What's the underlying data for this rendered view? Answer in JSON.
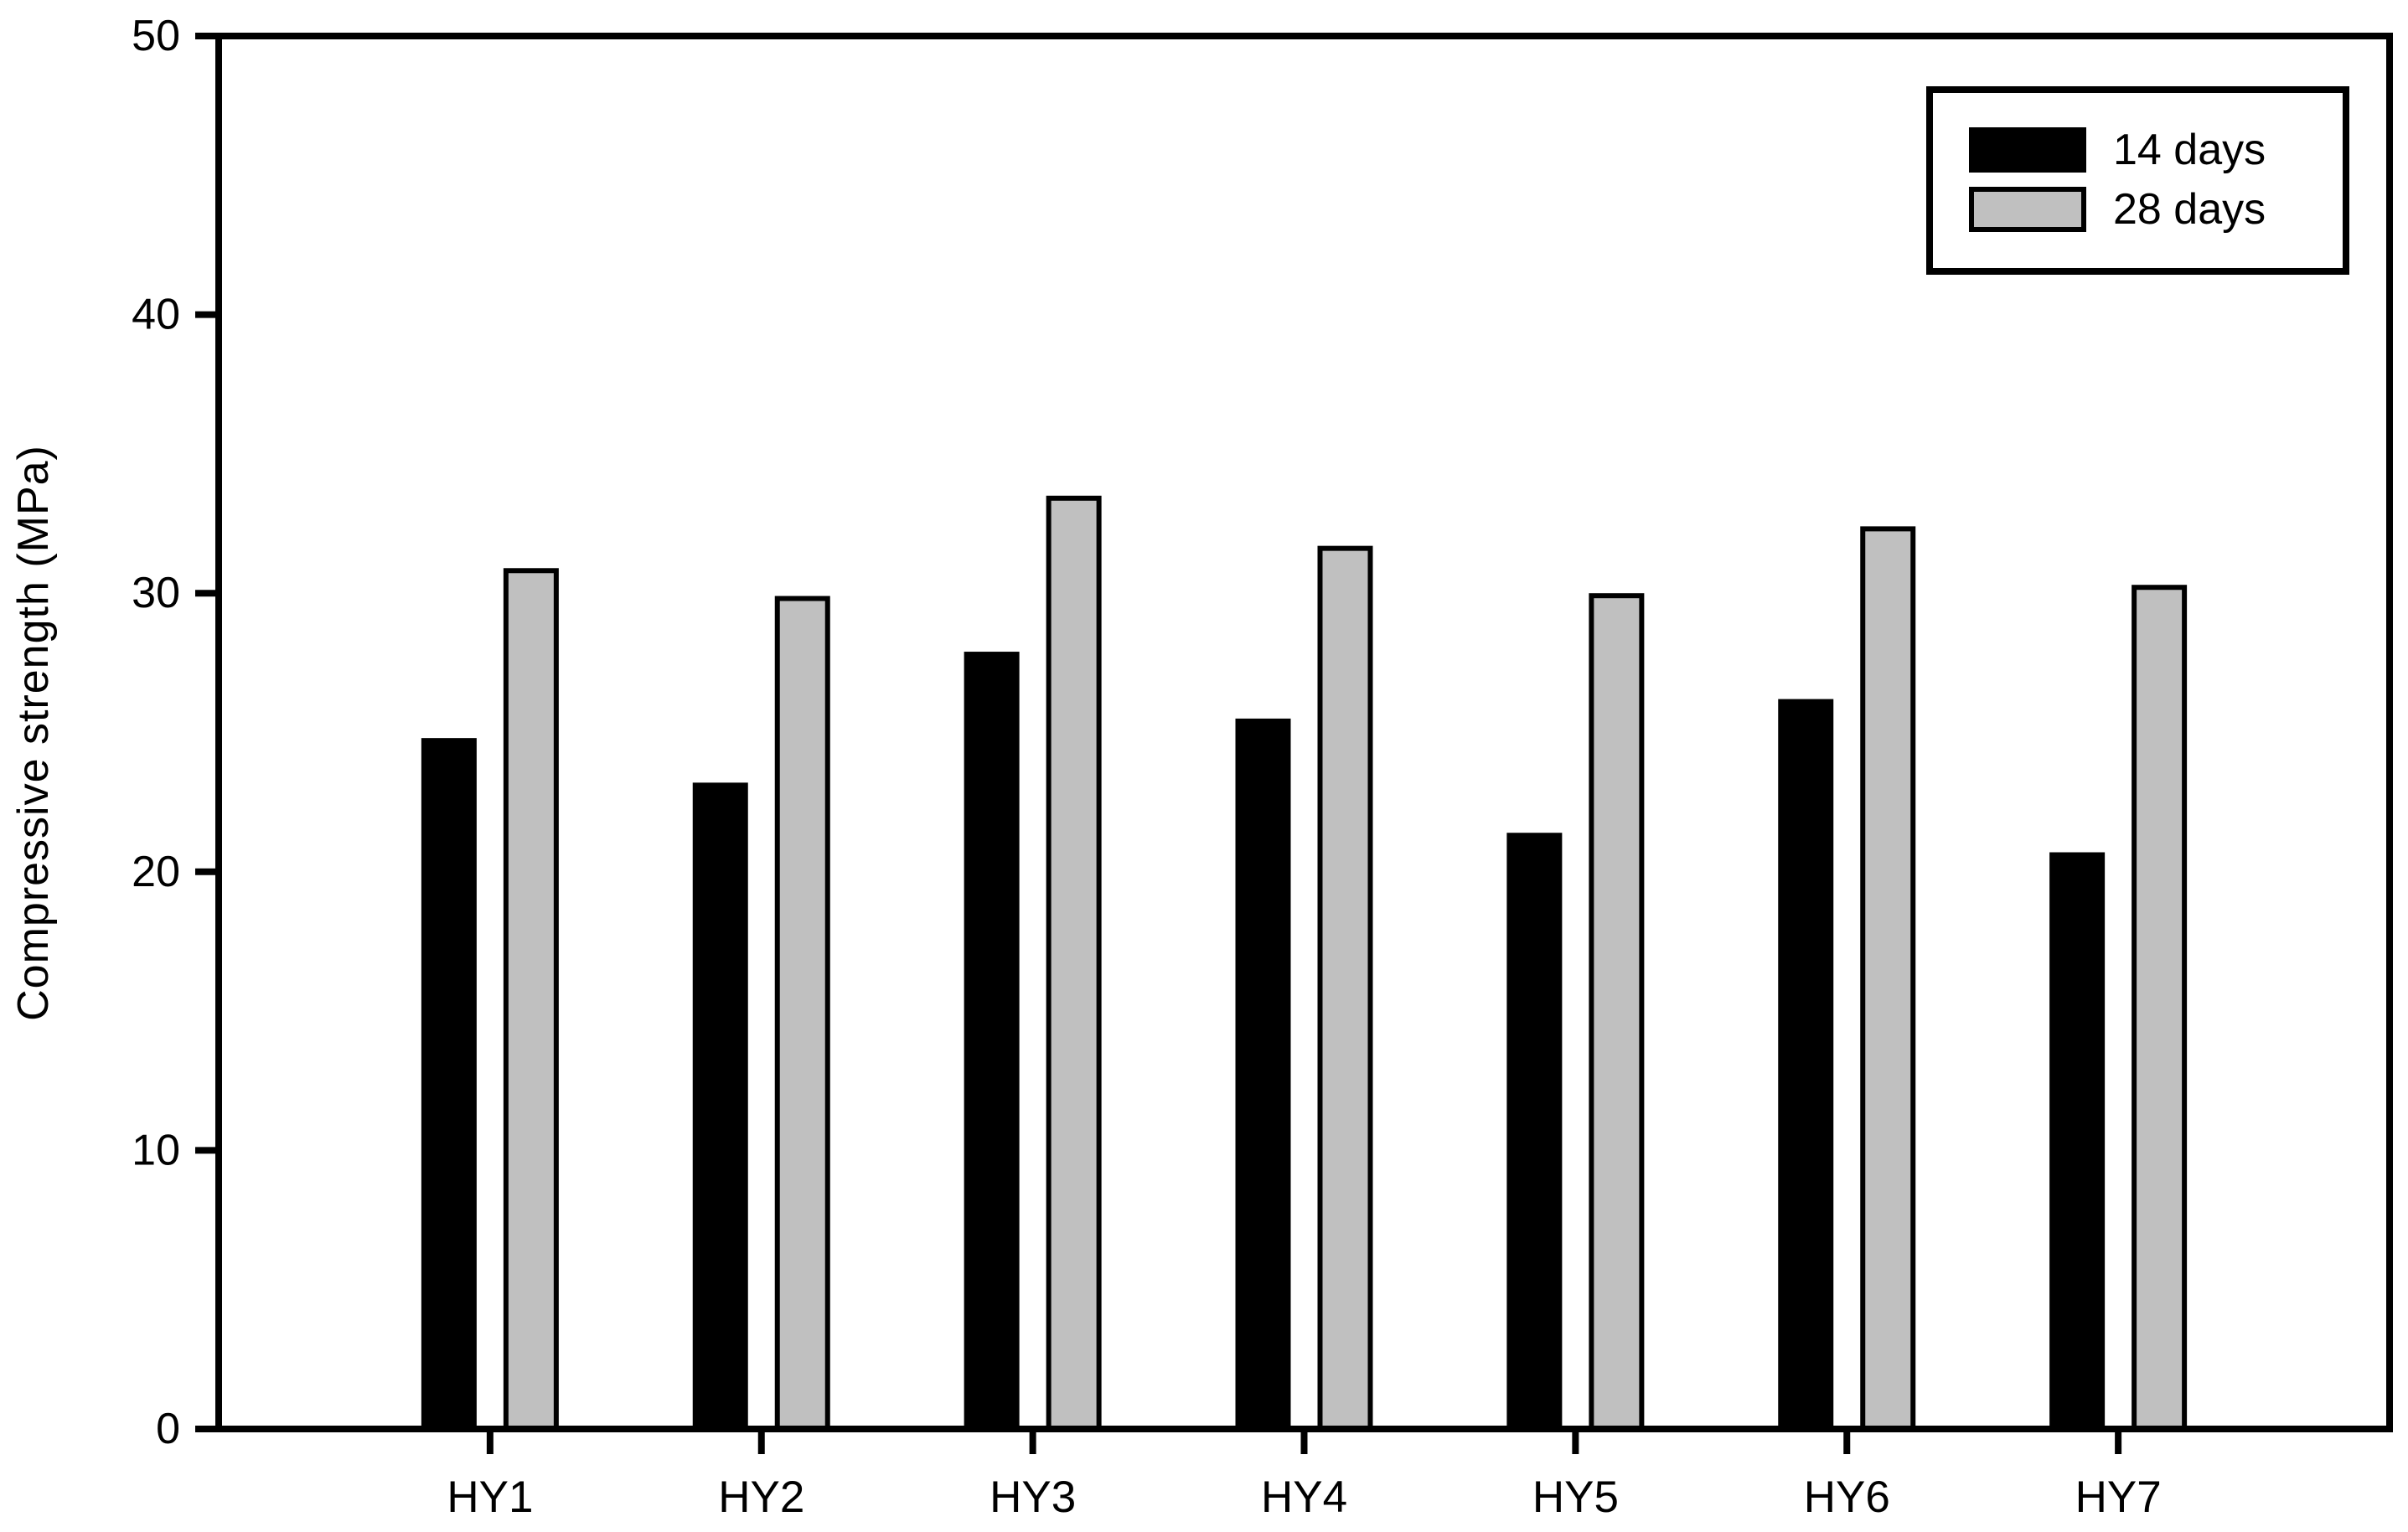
{
  "figure": {
    "background": "#ffffff",
    "text_color": "#000000"
  },
  "chart_data": {
    "type": "bar",
    "title": "",
    "xlabel": "",
    "ylabel": "Compressive strength (MPa)",
    "categories": [
      "HY1",
      "HY2",
      "HY3",
      "HY4",
      "HY5",
      "HY6",
      "HY7"
    ],
    "series": [
      {
        "name": "14 days",
        "color": "#000000",
        "border_color": "#000000",
        "values": [
          24.8,
          23.2,
          27.9,
          25.5,
          21.4,
          26.2,
          20.7
        ]
      },
      {
        "name": "28 days",
        "color": "#c0c0c0",
        "border_color": "#000000",
        "values": [
          30.9,
          29.9,
          33.5,
          31.7,
          30.0,
          32.4,
          30.3
        ]
      }
    ],
    "ylim": [
      0,
      50
    ],
    "yticks": [
      0,
      10,
      20,
      30,
      40,
      50
    ],
    "ytick_labels": [
      "0",
      "10",
      "20",
      "30",
      "40",
      "50"
    ],
    "grid": false,
    "axis_color": "#000000",
    "legend": {
      "position": "top-right",
      "entries": [
        "14 days",
        "28 days"
      ]
    }
  }
}
